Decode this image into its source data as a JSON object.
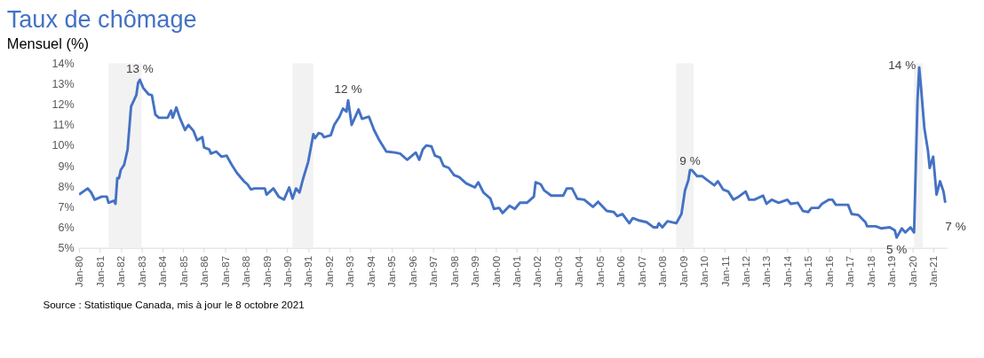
{
  "chart_data": {
    "type": "line",
    "title": "Taux de chômage",
    "subtitle": "Mensuel (%)",
    "x": [
      "1980-01",
      "1980-06",
      "1980-08",
      "1980-10",
      "1981-02",
      "1981-05",
      "1981-06",
      "1981-09",
      "1981-10",
      "1981-11",
      "1981-12",
      "1982-01",
      "1982-03",
      "1982-05",
      "1982-07",
      "1982-10",
      "1982-11",
      "1982-12",
      "1983-02",
      "1983-05",
      "1983-07",
      "1983-09",
      "1983-11",
      "1984-04",
      "1984-06",
      "1984-07",
      "1984-09",
      "1984-11",
      "1985-02",
      "1985-04",
      "1985-07",
      "1985-09",
      "1985-12",
      "1986-01",
      "1986-04",
      "1986-05",
      "1986-08",
      "1986-11",
      "1987-02",
      "1987-05",
      "1987-08",
      "1987-12",
      "1988-02",
      "1988-04",
      "1988-06",
      "1988-12",
      "1989-01",
      "1989-05",
      "1989-08",
      "1989-11",
      "1990-02",
      "1990-04",
      "1990-06",
      "1990-08",
      "1990-10",
      "1991-01",
      "1991-04",
      "1991-05",
      "1991-07",
      "1991-09",
      "1991-10",
      "1992-02",
      "1992-04",
      "1992-07",
      "1992-09",
      "1992-11",
      "1992-12",
      "1993-02",
      "1993-06",
      "1993-08",
      "1993-12",
      "1994-03",
      "1994-06",
      "1994-10",
      "1995-03",
      "1995-06",
      "1995-10",
      "1996-03",
      "1996-05",
      "1996-07",
      "1996-09",
      "1996-12",
      "1997-02",
      "1997-05",
      "1997-07",
      "1997-10",
      "1998-01",
      "1998-04",
      "1998-08",
      "1999-01",
      "1999-03",
      "1999-06",
      "1999-10",
      "1999-12",
      "2000-03",
      "2000-05",
      "2000-09",
      "2000-12",
      "2001-03",
      "2001-07",
      "2001-11",
      "2001-12",
      "2002-03",
      "2002-05",
      "2002-09",
      "2003-01",
      "2003-04",
      "2003-06",
      "2003-09",
      "2003-12",
      "2004-04",
      "2004-09",
      "2004-12",
      "2005-05",
      "2005-09",
      "2005-11",
      "2006-02",
      "2006-06",
      "2006-08",
      "2006-11",
      "2007-04",
      "2007-08",
      "2007-10",
      "2007-11",
      "2008-01",
      "2008-04",
      "2008-09",
      "2008-12",
      "2009-02",
      "2009-04",
      "2009-05",
      "2009-06",
      "2009-09",
      "2009-12",
      "2010-03",
      "2010-07",
      "2010-09",
      "2010-12",
      "2011-03",
      "2011-06",
      "2011-09",
      "2012-01",
      "2012-03",
      "2012-06",
      "2012-11",
      "2013-01",
      "2013-04",
      "2013-08",
      "2014-01",
      "2014-03",
      "2014-07",
      "2014-10",
      "2015-01",
      "2015-03",
      "2015-07",
      "2015-09",
      "2016-01",
      "2016-03",
      "2016-05",
      "2016-08",
      "2016-12",
      "2017-02",
      "2017-06",
      "2017-10",
      "2017-11",
      "2018-04",
      "2018-07",
      "2018-12",
      "2019-03",
      "2019-04",
      "2019-07",
      "2019-09",
      "2019-12",
      "2020-02",
      "2020-04",
      "2020-05",
      "2020-06",
      "2020-08",
      "2020-10",
      "2020-11",
      "2021-01",
      "2021-03",
      "2021-05",
      "2021-07",
      "2021-08"
    ],
    "series": [
      {
        "color": "#4472c4",
        "values": [
          7.6,
          7.9,
          7.7,
          7.35,
          7.5,
          7.5,
          7.2,
          7.3,
          7.15,
          8.4,
          8.4,
          8.8,
          9.05,
          9.8,
          11.9,
          12.45,
          13.05,
          13.2,
          12.8,
          12.5,
          12.45,
          11.5,
          11.35,
          11.35,
          11.7,
          11.35,
          11.85,
          11.35,
          10.75,
          11.0,
          10.7,
          10.25,
          10.4,
          9.9,
          9.8,
          9.6,
          9.7,
          9.45,
          9.5,
          9.05,
          8.65,
          8.25,
          8.1,
          7.85,
          7.9,
          7.9,
          7.6,
          7.9,
          7.5,
          7.35,
          7.95,
          7.4,
          7.9,
          7.7,
          8.35,
          9.2,
          10.55,
          10.35,
          10.6,
          10.55,
          10.4,
          10.5,
          11.0,
          11.4,
          11.8,
          11.65,
          12.2,
          11.0,
          11.75,
          11.3,
          11.4,
          10.75,
          10.25,
          9.7,
          9.65,
          9.6,
          9.3,
          9.65,
          9.3,
          9.8,
          10.0,
          9.95,
          9.5,
          9.4,
          9.0,
          8.9,
          8.55,
          8.45,
          8.15,
          7.95,
          8.2,
          7.7,
          7.4,
          6.9,
          6.95,
          6.7,
          7.05,
          6.9,
          7.2,
          7.2,
          7.5,
          8.2,
          8.1,
          7.8,
          7.55,
          7.55,
          7.55,
          7.9,
          7.9,
          7.4,
          7.35,
          7.0,
          7.25,
          6.8,
          6.75,
          6.55,
          6.65,
          6.2,
          6.45,
          6.35,
          6.25,
          6.0,
          6.0,
          6.2,
          6.0,
          6.3,
          6.2,
          6.65,
          7.8,
          8.3,
          8.8,
          8.8,
          8.5,
          8.5,
          8.3,
          8.05,
          8.25,
          7.85,
          7.75,
          7.35,
          7.5,
          7.75,
          7.35,
          7.35,
          7.55,
          7.15,
          7.35,
          7.2,
          7.35,
          7.15,
          7.2,
          6.8,
          6.75,
          6.95,
          6.95,
          7.15,
          7.35,
          7.35,
          7.1,
          7.1,
          7.1,
          6.65,
          6.6,
          6.25,
          6.05,
          6.05,
          5.95,
          6.0,
          5.85,
          5.5,
          5.95,
          5.75,
          6.0,
          5.75,
          12.2,
          13.8,
          12.85,
          10.8,
          9.75,
          8.9,
          9.45,
          7.6,
          8.25,
          7.75,
          7.2
        ]
      }
    ],
    "xlim": [
      "1980-01",
      "2021-09"
    ],
    "xticks": [
      {
        "value": "1980-01",
        "label": "Jan-80"
      },
      {
        "value": "1981-01",
        "label": "Jan-81"
      },
      {
        "value": "1982-01",
        "label": "Jan-82"
      },
      {
        "value": "1983-01",
        "label": "Jan-83"
      },
      {
        "value": "1984-01",
        "label": "Jan-84"
      },
      {
        "value": "1985-01",
        "label": "Jan-85"
      },
      {
        "value": "1986-01",
        "label": "Jan-86"
      },
      {
        "value": "1987-01",
        "label": "Jan-87"
      },
      {
        "value": "1988-01",
        "label": "Jan-88"
      },
      {
        "value": "1989-01",
        "label": "Jan-89"
      },
      {
        "value": "1990-01",
        "label": "Jan-90"
      },
      {
        "value": "1991-01",
        "label": "Jan-91"
      },
      {
        "value": "1992-01",
        "label": "Jan-92"
      },
      {
        "value": "1993-01",
        "label": "Jan-93"
      },
      {
        "value": "1994-01",
        "label": "Jan-94"
      },
      {
        "value": "1995-01",
        "label": "Jan-95"
      },
      {
        "value": "1996-01",
        "label": "Jan-96"
      },
      {
        "value": "1997-01",
        "label": "Jan-97"
      },
      {
        "value": "1998-01",
        "label": "Jan-98"
      },
      {
        "value": "1999-01",
        "label": "Jan-99"
      },
      {
        "value": "2000-01",
        "label": "Jan-00"
      },
      {
        "value": "2001-01",
        "label": "Jan-01"
      },
      {
        "value": "2002-01",
        "label": "Jan-02"
      },
      {
        "value": "2003-01",
        "label": "Jan-03"
      },
      {
        "value": "2004-01",
        "label": "Jan-04"
      },
      {
        "value": "2005-01",
        "label": "Jan-05"
      },
      {
        "value": "2006-01",
        "label": "Jan-06"
      },
      {
        "value": "2007-01",
        "label": "Jan-07"
      },
      {
        "value": "2008-01",
        "label": "Jan-08"
      },
      {
        "value": "2009-01",
        "label": "Jan-09"
      },
      {
        "value": "2010-01",
        "label": "Jan-10"
      },
      {
        "value": "2011-01",
        "label": "Jan-11"
      },
      {
        "value": "2012-01",
        "label": "Jan-12"
      },
      {
        "value": "2013-01",
        "label": "Jan-13"
      },
      {
        "value": "2014-01",
        "label": "Jan-14"
      },
      {
        "value": "2015-01",
        "label": "Jan-15"
      },
      {
        "value": "2016-01",
        "label": "Jan-16"
      },
      {
        "value": "2017-01",
        "label": "Jan-17"
      },
      {
        "value": "2018-01",
        "label": "Jan-18"
      },
      {
        "value": "2019-01",
        "label": "Jan-19"
      },
      {
        "value": "2020-01",
        "label": "Jan-20"
      },
      {
        "value": "2021-01",
        "label": "Jan-21"
      }
    ],
    "ylim": [
      5,
      14
    ],
    "yticks": [
      {
        "value": 5,
        "label": "5%"
      },
      {
        "value": 6,
        "label": "6%"
      },
      {
        "value": 7,
        "label": "7%"
      },
      {
        "value": 8,
        "label": "8%"
      },
      {
        "value": 9,
        "label": "9%"
      },
      {
        "value": 10,
        "label": "10%"
      },
      {
        "value": 11,
        "label": "11%"
      },
      {
        "value": 12,
        "label": "12%"
      },
      {
        "value": 13,
        "label": "13%"
      },
      {
        "value": 14,
        "label": "14%"
      }
    ],
    "bands": [
      {
        "axis": "x",
        "from": "1981-06",
        "to": "1983-01",
        "color": "#f2f2f2"
      },
      {
        "axis": "x",
        "from": "1990-04",
        "to": "1991-04",
        "color": "#f2f2f2"
      },
      {
        "axis": "x",
        "from": "2008-09",
        "to": "2009-07",
        "color": "#f2f2f2"
      },
      {
        "axis": "x",
        "from": "2020-02",
        "to": "2020-07",
        "color": "#f2f2f2"
      }
    ],
    "annotations": [
      {
        "text": "13 %",
        "x": "1982-12",
        "y": 13.2
      },
      {
        "text": "12 %",
        "x": "1992-12",
        "y": 12.2
      },
      {
        "text": "9 %",
        "x": "2009-05",
        "y": 8.8
      },
      {
        "text": "14 %",
        "x": "2020-05",
        "y": 13.8
      },
      {
        "text": "5 %",
        "x": "2019-04",
        "y": 5.5
      },
      {
        "text": "7 %",
        "x": "2021-08",
        "y": 7.2
      },
      "Source : Statistique Canada, mis à jour le 8 octobre 2021"
    ],
    "grid": false,
    "line_style": "solid"
  }
}
